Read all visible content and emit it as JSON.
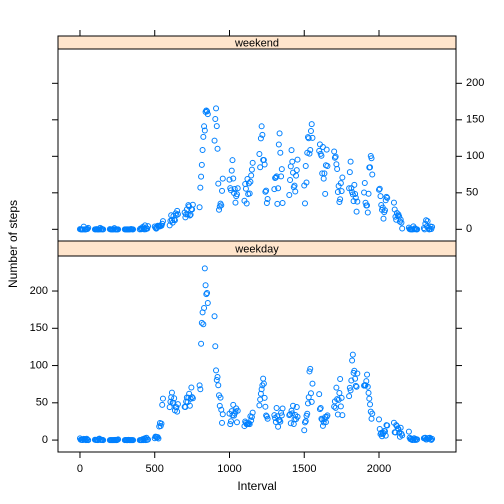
{
  "chart_data": {
    "type": "scatter",
    "xlabel": "Interval",
    "ylabel": "Number of steps",
    "x": [
      0,
      5,
      10,
      15,
      20,
      25,
      30,
      35,
      40,
      45,
      50,
      55,
      100,
      105,
      110,
      115,
      120,
      125,
      130,
      135,
      140,
      145,
      150,
      155,
      200,
      205,
      210,
      215,
      220,
      225,
      230,
      235,
      240,
      245,
      250,
      255,
      300,
      305,
      310,
      315,
      320,
      325,
      330,
      335,
      340,
      345,
      350,
      355,
      400,
      405,
      410,
      415,
      420,
      425,
      430,
      435,
      440,
      445,
      450,
      455,
      500,
      505,
      510,
      515,
      520,
      525,
      530,
      535,
      540,
      545,
      550,
      555,
      600,
      605,
      610,
      615,
      620,
      625,
      630,
      635,
      640,
      645,
      650,
      655,
      700,
      705,
      710,
      715,
      720,
      725,
      730,
      735,
      740,
      745,
      750,
      755,
      800,
      805,
      810,
      815,
      820,
      825,
      830,
      835,
      840,
      845,
      850,
      855,
      900,
      905,
      910,
      915,
      920,
      925,
      930,
      935,
      940,
      945,
      950,
      955,
      1000,
      1005,
      1010,
      1015,
      1020,
      1025,
      1030,
      1035,
      1040,
      1045,
      1050,
      1055,
      1100,
      1105,
      1110,
      1115,
      1120,
      1125,
      1130,
      1135,
      1140,
      1145,
      1150,
      1155,
      1200,
      1205,
      1210,
      1215,
      1220,
      1225,
      1230,
      1235,
      1240,
      1245,
      1250,
      1255,
      1300,
      1305,
      1310,
      1315,
      1320,
      1325,
      1330,
      1335,
      1340,
      1345,
      1350,
      1355,
      1400,
      1405,
      1410,
      1415,
      1420,
      1425,
      1430,
      1435,
      1440,
      1445,
      1450,
      1455,
      1500,
      1505,
      1510,
      1515,
      1520,
      1525,
      1530,
      1535,
      1540,
      1545,
      1550,
      1555,
      1600,
      1605,
      1610,
      1615,
      1620,
      1625,
      1630,
      1635,
      1640,
      1645,
      1650,
      1655,
      1700,
      1705,
      1710,
      1715,
      1720,
      1725,
      1730,
      1735,
      1740,
      1745,
      1750,
      1755,
      1800,
      1805,
      1810,
      1815,
      1820,
      1825,
      1830,
      1835,
      1840,
      1845,
      1850,
      1855,
      1900,
      1905,
      1910,
      1915,
      1920,
      1925,
      1930,
      1935,
      1940,
      1945,
      1950,
      1955,
      2000,
      2005,
      2010,
      2015,
      2020,
      2025,
      2030,
      2035,
      2040,
      2045,
      2050,
      2055,
      2100,
      2105,
      2110,
      2115,
      2120,
      2125,
      2130,
      2135,
      2140,
      2145,
      2150,
      2155,
      2200,
      2205,
      2210,
      2215,
      2220,
      2225,
      2230,
      2235,
      2240,
      2245,
      2250,
      2255,
      2300,
      2305,
      2310,
      2315,
      2320,
      2325,
      2330,
      2335,
      2340,
      2345,
      2350,
      2355
    ],
    "series": [
      {
        "name": "weekend",
        "color": "#0080ff",
        "values": [
          0.2,
          0,
          0,
          0,
          0,
          3.7,
          0,
          0,
          0,
          0.4,
          0.5,
          1.9,
          0,
          0,
          0.3,
          0,
          0,
          0,
          0,
          1.9,
          0,
          0.8,
          0,
          0,
          0.2,
          0,
          0,
          0,
          0,
          0,
          1.7,
          0,
          0,
          0,
          0,
          0,
          0,
          0,
          0,
          0,
          0,
          0,
          0,
          0,
          0.2,
          0.3,
          0,
          0,
          0,
          1.2,
          0.1,
          1.5,
          3.2,
          1.3,
          0,
          5.4,
          0.1,
          1.4,
          0.9,
          4.3,
          3.8,
          2.2,
          0.9,
          2.2,
          4.9,
          4.7,
          4.4,
          4.1,
          5.4,
          4.9,
          7.7,
          11.2,
          5.4,
          11.5,
          19.3,
          12.2,
          9.1,
          18.1,
          13.2,
          12.5,
          21.9,
          19.4,
          25.3,
          20.6,
          23.0,
          16.3,
          20.4,
          27.3,
          20.5,
          33.1,
          31.3,
          19.0,
          20.1,
          27.6,
          27.3,
          33.7,
          30.2,
          57.1,
          72.2,
          88.3,
          108.7,
          126.6,
          141.1,
          135.3,
          160.9,
          162.8,
          161.6,
          157.8,
          121.5,
          151.1,
          165.7,
          141.4,
          110.3,
          62.6,
          26.8,
          31.3,
          35.2,
          32.9,
          52.6,
          69.4,
          68.0,
          56.5,
          53.6,
          80.4,
          94.7,
          69.6,
          49.8,
          55.3,
          36.6,
          45.5,
          48.1,
          56.2,
          39.1,
          62.1,
          55.5,
          35.3,
          69.0,
          48.2,
          63.0,
          49.0,
          65.1,
          73.8,
          81.8,
          91.1,
          103.1,
          85.0,
          124.6,
          141.1,
          129.4,
          95.0,
          95.0,
          88.8,
          51.5,
          53.0,
          36.0,
          41.6,
          55.1,
          70.3,
          71.0,
          72.6,
          34.8,
          56.3,
          116.2,
          131.4,
          104.9,
          72.5,
          82.4,
          36.0,
          47.0,
          67.6,
          86.2,
          108.4,
          92.8,
          77.6,
          57.8,
          59.9,
          51.8,
          73.5,
          81.1,
          95.4,
          60.0,
          35.6,
          86.8,
          64.1,
          104.8,
          126.3,
          124.7,
          103.6,
          108.7,
          134.6,
          144.1,
          125.2,
          107.5,
          116.3,
          103.3,
          100.7,
          76.6,
          112.7,
          69.4,
          76.6,
          48.6,
          87.7,
          109.1,
          86.7,
          106.6,
          98.0,
          99.5,
          89.2,
          82.7,
          51.1,
          59.3,
          37.4,
          41.2,
          63.3,
          52.3,
          70.9,
          56.3,
          78.3,
          92.8,
          56.5,
          51.0,
          47.8,
          38.6,
          60.9,
          48.3,
          43.3,
          24.3,
          37.9,
          50.5,
          63.5,
          36.4,
          32.7,
          32.8,
          23.0,
          48.8,
          84.6,
          85.0,
          100.4,
          97.4,
          75.1,
          54.2,
          55.6,
          45.4,
          33.3,
          26.6,
          29.7,
          14.6,
          23.6,
          26.2,
          39.8,
          44.4,
          43.0,
          36.5,
          27.2,
          17.3,
          13.1,
          22.3,
          18.4,
          20.3,
          17.6,
          10.6,
          13.3,
          9.2,
          1.2,
          2.4,
          0.2,
          0,
          0.1,
          0,
          0,
          4.1,
          0.1,
          1.5,
          0.3,
          0,
          0,
          1.6,
          0,
          7.8,
          12.5,
          4.1,
          11.3,
          2.0,
          0,
          0.1,
          3.9,
          0.5,
          3.3
        ]
      },
      {
        "name": "weekday",
        "color": "#0080ff",
        "values": [
          2.3,
          0.4,
          0.2,
          0.2,
          0.1,
          1.6,
          0.6,
          1.1,
          0,
          1.8,
          0.4,
          0,
          0.4,
          0.2,
          0.1,
          0.2,
          0,
          1.4,
          1.9,
          0.2,
          0.2,
          0.3,
          0.3,
          0,
          0,
          0,
          0,
          0,
          0,
          0,
          0,
          0.2,
          0,
          0,
          0.2,
          0.9,
          0,
          0.1,
          0,
          0,
          0,
          0.2,
          0,
          0,
          0,
          0,
          0,
          0,
          0,
          0,
          0,
          0,
          1.2,
          0,
          1.6,
          2.4,
          0,
          3.2,
          0.2,
          0.8,
          2.4,
          4.6,
          4.3,
          3.3,
          3.9,
          2.1,
          18.2,
          22.9,
          18.9,
          22.1,
          47.3,
          55.7,
          44.2,
          51.5,
          57.5,
          63.6,
          50.2,
          49.8,
          56.1,
          39.8,
          44.4,
          44.0,
          38.2,
          48.2,
          44.5,
          44.4,
          51.6,
          57.1,
          51.0,
          56.8,
          62.2,
          46.1,
          55.4,
          70.5,
          57.7,
          56.2,
          73.4,
          68.2,
          129.2,
          157.2,
          171.4,
          155.4,
          177.3,
          230.4,
          207.8,
          195.9,
          197.4,
          184.0,
          166.1,
          125.9,
          93.5,
          80.6,
          84.6,
          73.6,
          60.1,
          45.9,
          57.0,
          40.7,
          23.1,
          34.7,
          35.5,
          21.4,
          25.3,
          38.9,
          33.3,
          47.3,
          32.8,
          35.6,
          38.4,
          42.5,
          23.9,
          39.4,
          18.8,
          24.9,
          23.1,
          21.2,
          21.6,
          21.5,
          22.8,
          21.4,
          31.9,
          26.5,
          30.9,
          36.9,
          46.6,
          54.5,
          62.1,
          68.2,
          73.4,
          82.4,
          75.8,
          56.6,
          44.8,
          33.0,
          31.7,
          28.6,
          33.4,
          29.6,
          24.2,
          43.0,
          32.0,
          17.9,
          27.0,
          26.8,
          24.8,
          36.6,
          33.2,
          42.3,
          33.5,
          34.7,
          22.5,
          39.3,
          35.8,
          46.0,
          21.5,
          27.8,
          33.6,
          28.1,
          44.4,
          31.3,
          13.2,
          23.8,
          25.4,
          32.7,
          35.3,
          49.2,
          57.4,
          92.1,
          95.6,
          62.8,
          51.3,
          75.8,
          61.6,
          41.6,
          43.1,
          28.6,
          27.4,
          19.0,
          23.7,
          28.0,
          30.9,
          24.1,
          31.3,
          33.2,
          44.9,
          52.0,
          43.2,
          70.3,
          55.0,
          34.4,
          54.0,
          63.2,
          82.0,
          45.3,
          56.7,
          33.4,
          59.0,
          70.1,
          66.7,
          79.9,
          106.8,
          114.7,
          90.1,
          93.1,
          82.3,
          72.8,
          71.6,
          89.3,
          73.1,
          73.8,
          73.6,
          79.1,
          87.8,
          71.5,
          63.4,
          55.7,
          47.9,
          38.1,
          28.6,
          35.5,
          27.8,
          14.8,
          7.9,
          9.7,
          5.2,
          8.3,
          9.5,
          12.2,
          11.8,
          6.0,
          20.0,
          19.5,
          23.2,
          10.5,
          10.2,
          20.1,
          18.8,
          15.7,
          14.9,
          9.8,
          4.4,
          16.6,
          8.5,
          6.3,
          11.4,
          3.2,
          1.3,
          1.8,
          0.2,
          0.1,
          0.7,
          2.5,
          0.1,
          1.4,
          0.2,
          0.9,
          2.4,
          3.0,
          3.2,
          0.7,
          1.0,
          2.3,
          2.7,
          2.8,
          3.2,
          0.7,
          0.2,
          1.6
        ]
      }
    ],
    "xlim": [
      -147,
      2515
    ],
    "ylim": [
      -16,
      247
    ],
    "xticks": [
      0,
      500,
      1000,
      1500,
      2000
    ],
    "yticks": [
      0,
      50,
      100,
      150,
      200
    ],
    "strip_color": "#ffe5cc"
  }
}
